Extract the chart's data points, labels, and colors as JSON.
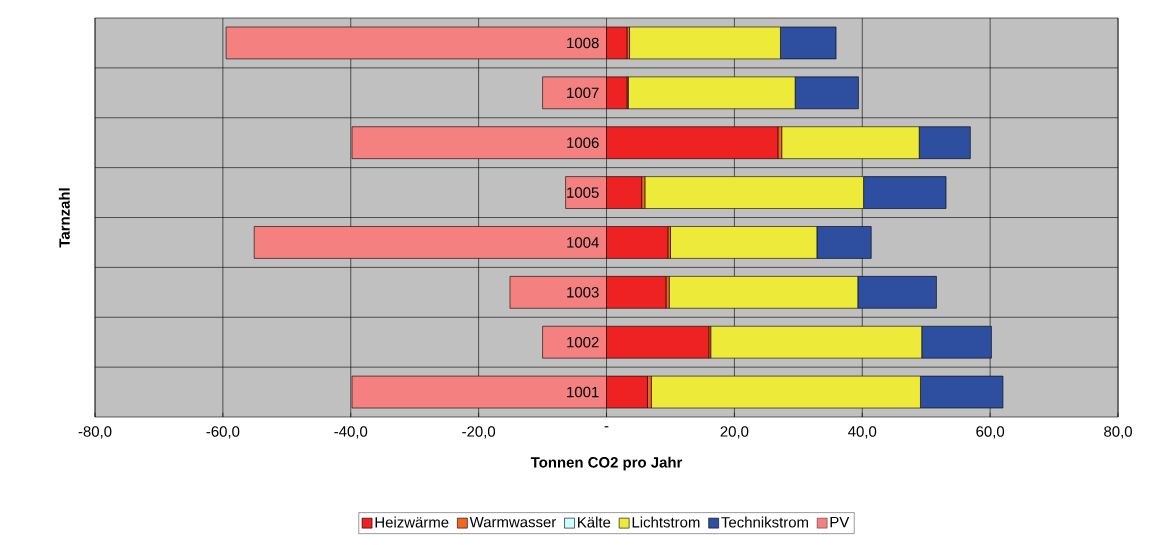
{
  "chart_data": {
    "type": "bar",
    "orientation": "horizontal",
    "stacked": true,
    "xlabel": "Tonnen CO2 pro Jahr",
    "ylabel": "Tarnzahl",
    "categories": [
      "1008",
      "1007",
      "1006",
      "1005",
      "1004",
      "1003",
      "1002",
      "1001"
    ],
    "series": [
      {
        "name": "Heizwärme",
        "color": "#ee2222",
        "values": [
          3.2,
          3.2,
          26.8,
          5.5,
          9.6,
          9.3,
          16.0,
          6.4
        ]
      },
      {
        "name": "Warmwasser",
        "color": "#f26522",
        "values": [
          0.4,
          0.2,
          0.6,
          0.5,
          0.4,
          0.5,
          0.3,
          0.6
        ]
      },
      {
        "name": "Kälte",
        "color": "#ccffff",
        "values": [
          0,
          0,
          0,
          0,
          0,
          0,
          0,
          0
        ]
      },
      {
        "name": "Lichtstrom",
        "color": "#eeea3a",
        "values": [
          23.6,
          26.1,
          21.5,
          34.2,
          22.9,
          29.5,
          33.0,
          42.1
        ]
      },
      {
        "name": "Technikstrom",
        "color": "#2e4fa0",
        "values": [
          8.7,
          9.9,
          8.0,
          12.9,
          8.5,
          12.3,
          10.9,
          12.9
        ]
      },
      {
        "name": "PV",
        "color": "#f48080",
        "values": [
          -59.5,
          -10.0,
          -39.8,
          -6.4,
          -55.1,
          -15.1,
          -10.0,
          -39.8
        ]
      }
    ],
    "xlim": [
      -80,
      80
    ],
    "xticks": [
      {
        "value": -80,
        "label": "-80,0"
      },
      {
        "value": -60,
        "label": "-60,0"
      },
      {
        "value": -40,
        "label": "-40,0"
      },
      {
        "value": -20,
        "label": "-20,0"
      },
      {
        "value": 0,
        "label": "-"
      },
      {
        "value": 20,
        "label": "20,0"
      },
      {
        "value": 40,
        "label": "40,0"
      },
      {
        "value": 60,
        "label": "60,0"
      },
      {
        "value": 80,
        "label": "80,0"
      }
    ],
    "grid": true,
    "legend": "bottom"
  }
}
